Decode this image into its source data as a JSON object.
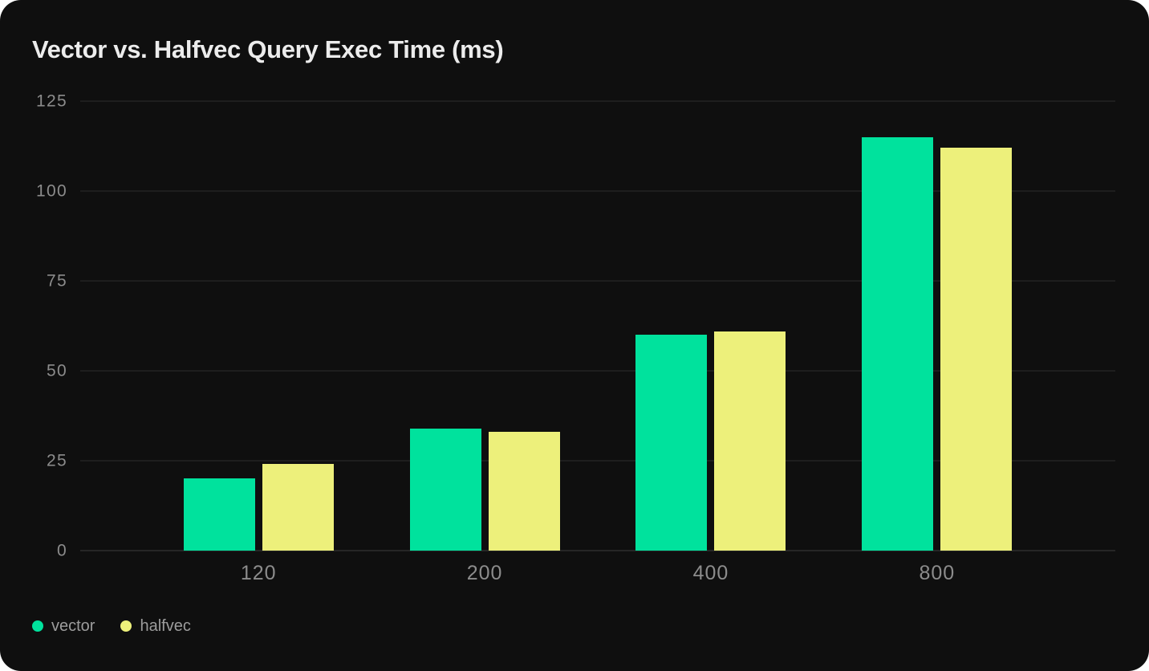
{
  "card": {
    "background": "#0f0f0f"
  },
  "chart_data": {
    "type": "bar",
    "title": "Vector vs. Halfvec Query Exec Time (ms)",
    "categories": [
      "120",
      "200",
      "400",
      "800"
    ],
    "series": [
      {
        "name": "vector",
        "color": "#00e29d",
        "values": [
          20,
          34,
          60,
          115
        ]
      },
      {
        "name": "halfvec",
        "color": "#edf07b",
        "values": [
          24,
          33,
          61,
          112
        ]
      }
    ],
    "xlabel": "",
    "ylabel": "",
    "ylim": [
      0,
      125
    ],
    "yticks": [
      0,
      25,
      50,
      75,
      100,
      125
    ],
    "grid": true,
    "legend_position": "bottom-left"
  },
  "colors": {
    "background": "#0f0f0f",
    "title_text": "#ececec",
    "tick_text": "#8c8c8c",
    "legend_text": "#9c9c9c",
    "gridline": "#2c2c2c",
    "axis_line": "#3c3c3c",
    "series_vector": "#00e29d",
    "series_halfvec": "#edf07b"
  }
}
